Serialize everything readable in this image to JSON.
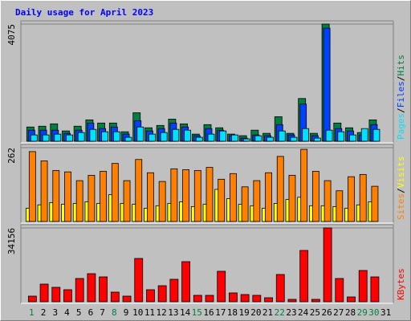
{
  "title": "Daily usage for April 2023",
  "legend_separator": "/",
  "categories": [
    "1",
    "2",
    "3",
    "4",
    "5",
    "6",
    "7",
    "8",
    "9",
    "10",
    "11",
    "12",
    "13",
    "14",
    "15",
    "16",
    "17",
    "18",
    "19",
    "20",
    "21",
    "22",
    "23",
    "24",
    "25",
    "26",
    "27",
    "28",
    "29",
    "30",
    "31"
  ],
  "weekend": [
    true,
    false,
    false,
    false,
    false,
    false,
    false,
    true,
    false,
    false,
    false,
    false,
    false,
    false,
    true,
    false,
    false,
    false,
    false,
    false,
    false,
    true,
    false,
    false,
    false,
    false,
    false,
    false,
    true,
    true,
    false
  ],
  "chart_data": [
    {
      "type": "bar",
      "ylim": [
        0,
        4075
      ],
      "yticks": [
        4075
      ],
      "series": [
        {
          "name": "Hits",
          "color": "#008040",
          "values": [
            495,
            523,
            605,
            358,
            523,
            743,
            633,
            633,
            330,
            990,
            468,
            550,
            770,
            605,
            248,
            578,
            468,
            248,
            193,
            385,
            275,
            853,
            275,
            1485,
            275,
            4075,
            633,
            468,
            303,
            743,
            0
          ]
        },
        {
          "name": "Files",
          "color": "#0040ff",
          "values": [
            385,
            385,
            385,
            275,
            385,
            633,
            440,
            495,
            248,
            715,
            358,
            440,
            633,
            495,
            193,
            440,
            385,
            193,
            110,
            220,
            193,
            578,
            220,
            1293,
            193,
            3933,
            440,
            358,
            220,
            578,
            0
          ]
        },
        {
          "name": "Pages",
          "color": "#00e0ff",
          "values": [
            220,
            220,
            248,
            220,
            303,
            413,
            330,
            330,
            138,
            495,
            248,
            303,
            413,
            385,
            138,
            248,
            358,
            220,
            83,
            193,
            138,
            358,
            138,
            440,
            110,
            385,
            330,
            220,
            440,
            413,
            0
          ]
        }
      ]
    },
    {
      "type": "bar",
      "ylim": [
        0,
        262
      ],
      "yticks": [
        262
      ],
      "series": [
        {
          "name": "Visits",
          "color": "#ffff00",
          "values": [
            47,
            59,
            67,
            61,
            64,
            70,
            64,
            95,
            64,
            61,
            47,
            56,
            64,
            70,
            53,
            61,
            114,
            81,
            61,
            56,
            47,
            64,
            78,
            86,
            56,
            56,
            53,
            47,
            59,
            70,
            0
          ]
        },
        {
          "name": "Sites",
          "color": "#ff8000",
          "values": [
            248,
            215,
            181,
            176,
            145,
            164,
            178,
            206,
            145,
            220,
            173,
            142,
            187,
            184,
            181,
            192,
            150,
            170,
            123,
            145,
            173,
            231,
            164,
            256,
            178,
            145,
            109,
            159,
            167,
            125,
            0
          ]
        }
      ]
    },
    {
      "type": "bar",
      "ylim": [
        0,
        34156
      ],
      "yticks": [
        34156
      ],
      "series": [
        {
          "name": "KBytes",
          "color": "#ff0000",
          "values": [
            2597,
            8162,
            6678,
            5565,
            10759,
            12985,
            11501,
            4452,
            2597,
            20034,
            5565,
            7420,
            10388,
            18550,
            2968,
            2968,
            14098,
            4081,
            3339,
            2968,
            1855,
            12614,
            1113,
            23744,
            1113,
            34156,
            10759,
            2226,
            14469,
            11501,
            0
          ]
        }
      ]
    }
  ]
}
